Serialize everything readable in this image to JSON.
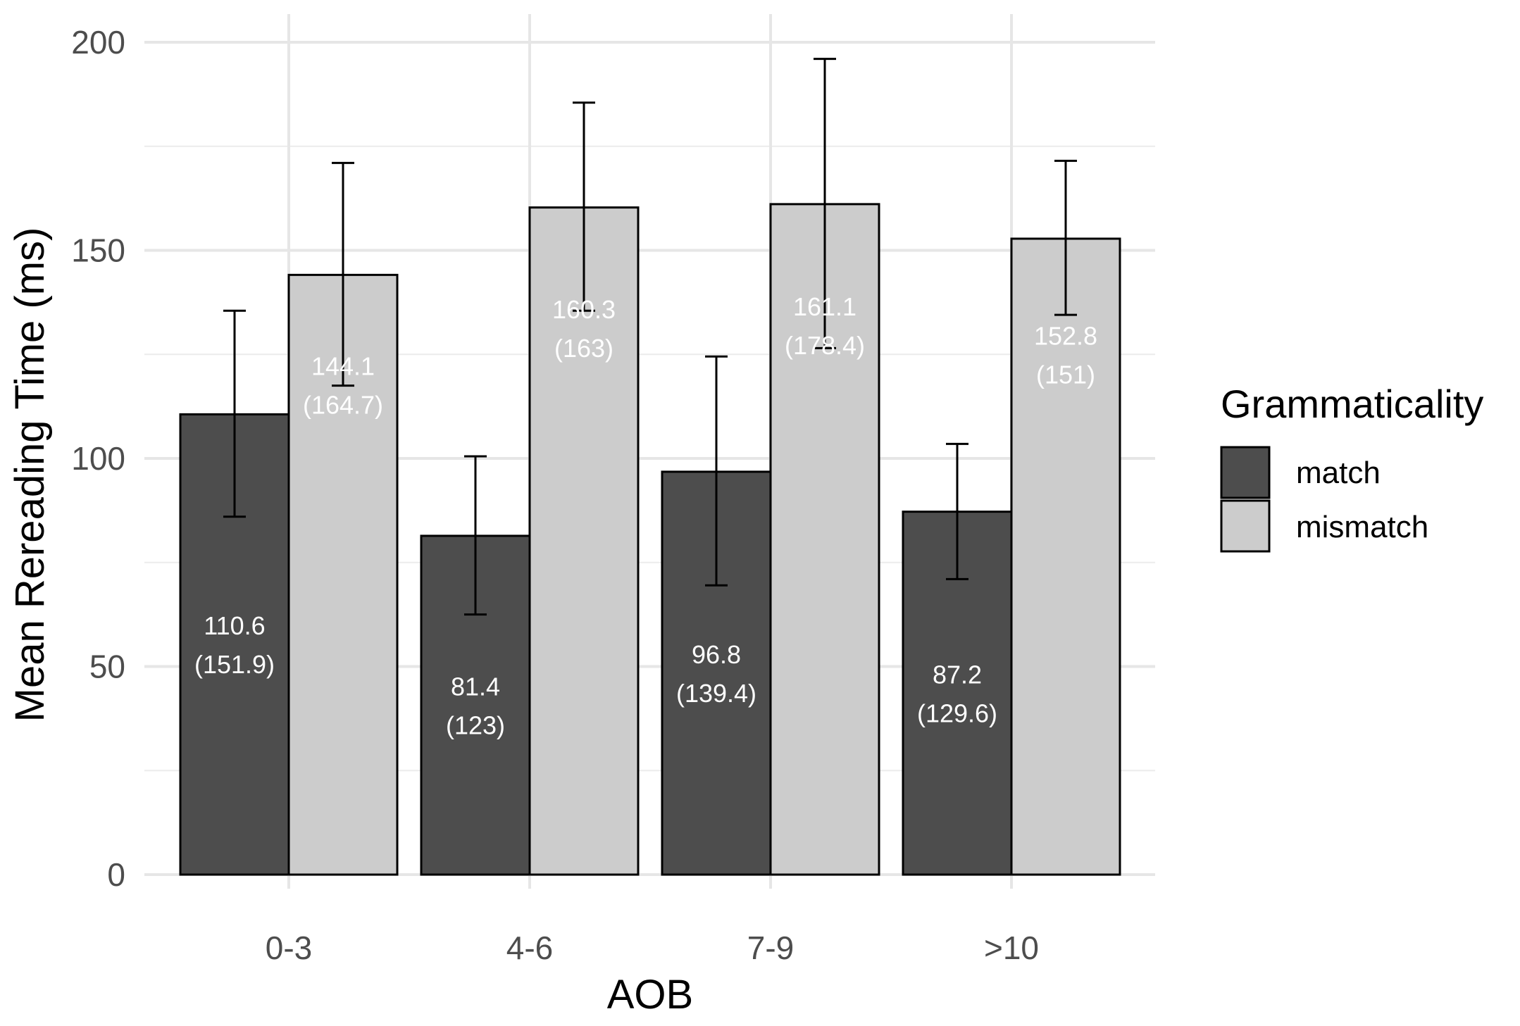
{
  "chart_data": {
    "type": "bar",
    "title": "",
    "xlabel": "AOB",
    "ylabel": "Mean Rereading Time (ms)",
    "categories": [
      "0-3",
      "4-6",
      "7-9",
      ">10"
    ],
    "ylim": [
      0,
      200
    ],
    "yticks": [
      "0",
      "50",
      "100",
      "150",
      "200"
    ],
    "ytick_values": [
      0,
      50,
      100,
      150,
      200
    ],
    "grid": true,
    "legend": {
      "title": "Grammaticality",
      "position": "right"
    },
    "series": [
      {
        "name": "match",
        "color": "#4d4d4d",
        "values": [
          110.6,
          81.4,
          96.8,
          87.2
        ],
        "error_low": [
          86,
          62.5,
          69.5,
          71
        ],
        "error_high": [
          135.5,
          100.5,
          124.5,
          103.5
        ],
        "labels_line1": [
          "110.6",
          "81.4",
          "96.8",
          "87.2"
        ],
        "labels_line2": [
          "(151.9)",
          "(123)",
          "(139.4)",
          "(129.6)"
        ]
      },
      {
        "name": "mismatch",
        "color": "#cccccc",
        "values": [
          144.1,
          160.3,
          161.1,
          152.8
        ],
        "error_low": [
          117.5,
          135.5,
          126.5,
          134.5
        ],
        "error_high": [
          171,
          185.5,
          196,
          171.5
        ],
        "labels_line1": [
          "144.1",
          "160.3",
          "161.1",
          "152.8"
        ],
        "labels_line2": [
          "(164.7)",
          "(163)",
          "(178.4)",
          "(151)"
        ]
      }
    ]
  }
}
